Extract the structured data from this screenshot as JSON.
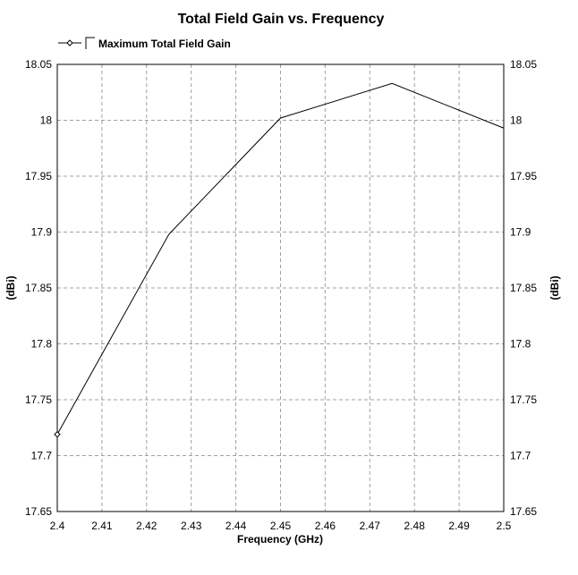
{
  "chart_data": {
    "type": "line",
    "title": "Total Field Gain vs. Frequency",
    "xlabel": "Frequency (GHz)",
    "ylabel": "(dBi)",
    "ylabel_right": "(dBi)",
    "xlim": [
      2.4,
      2.5
    ],
    "ylim": [
      17.65,
      18.05
    ],
    "x_ticks": [
      "2.4",
      "2.41",
      "2.42",
      "2.43",
      "2.44",
      "2.45",
      "2.46",
      "2.47",
      "2.48",
      "2.49",
      "2.5"
    ],
    "y_ticks": [
      "17.65",
      "17.7",
      "17.75",
      "17.8",
      "17.85",
      "17.9",
      "17.95",
      "18",
      "18.05"
    ],
    "grid": true,
    "legend_position": "top-left",
    "series": [
      {
        "name": "Maximum Total Field Gain",
        "color": "#000000",
        "x": [
          2.4,
          2.425,
          2.45,
          2.475,
          2.5
        ],
        "y": [
          17.719,
          17.898,
          18.002,
          18.033,
          17.993
        ]
      }
    ]
  }
}
